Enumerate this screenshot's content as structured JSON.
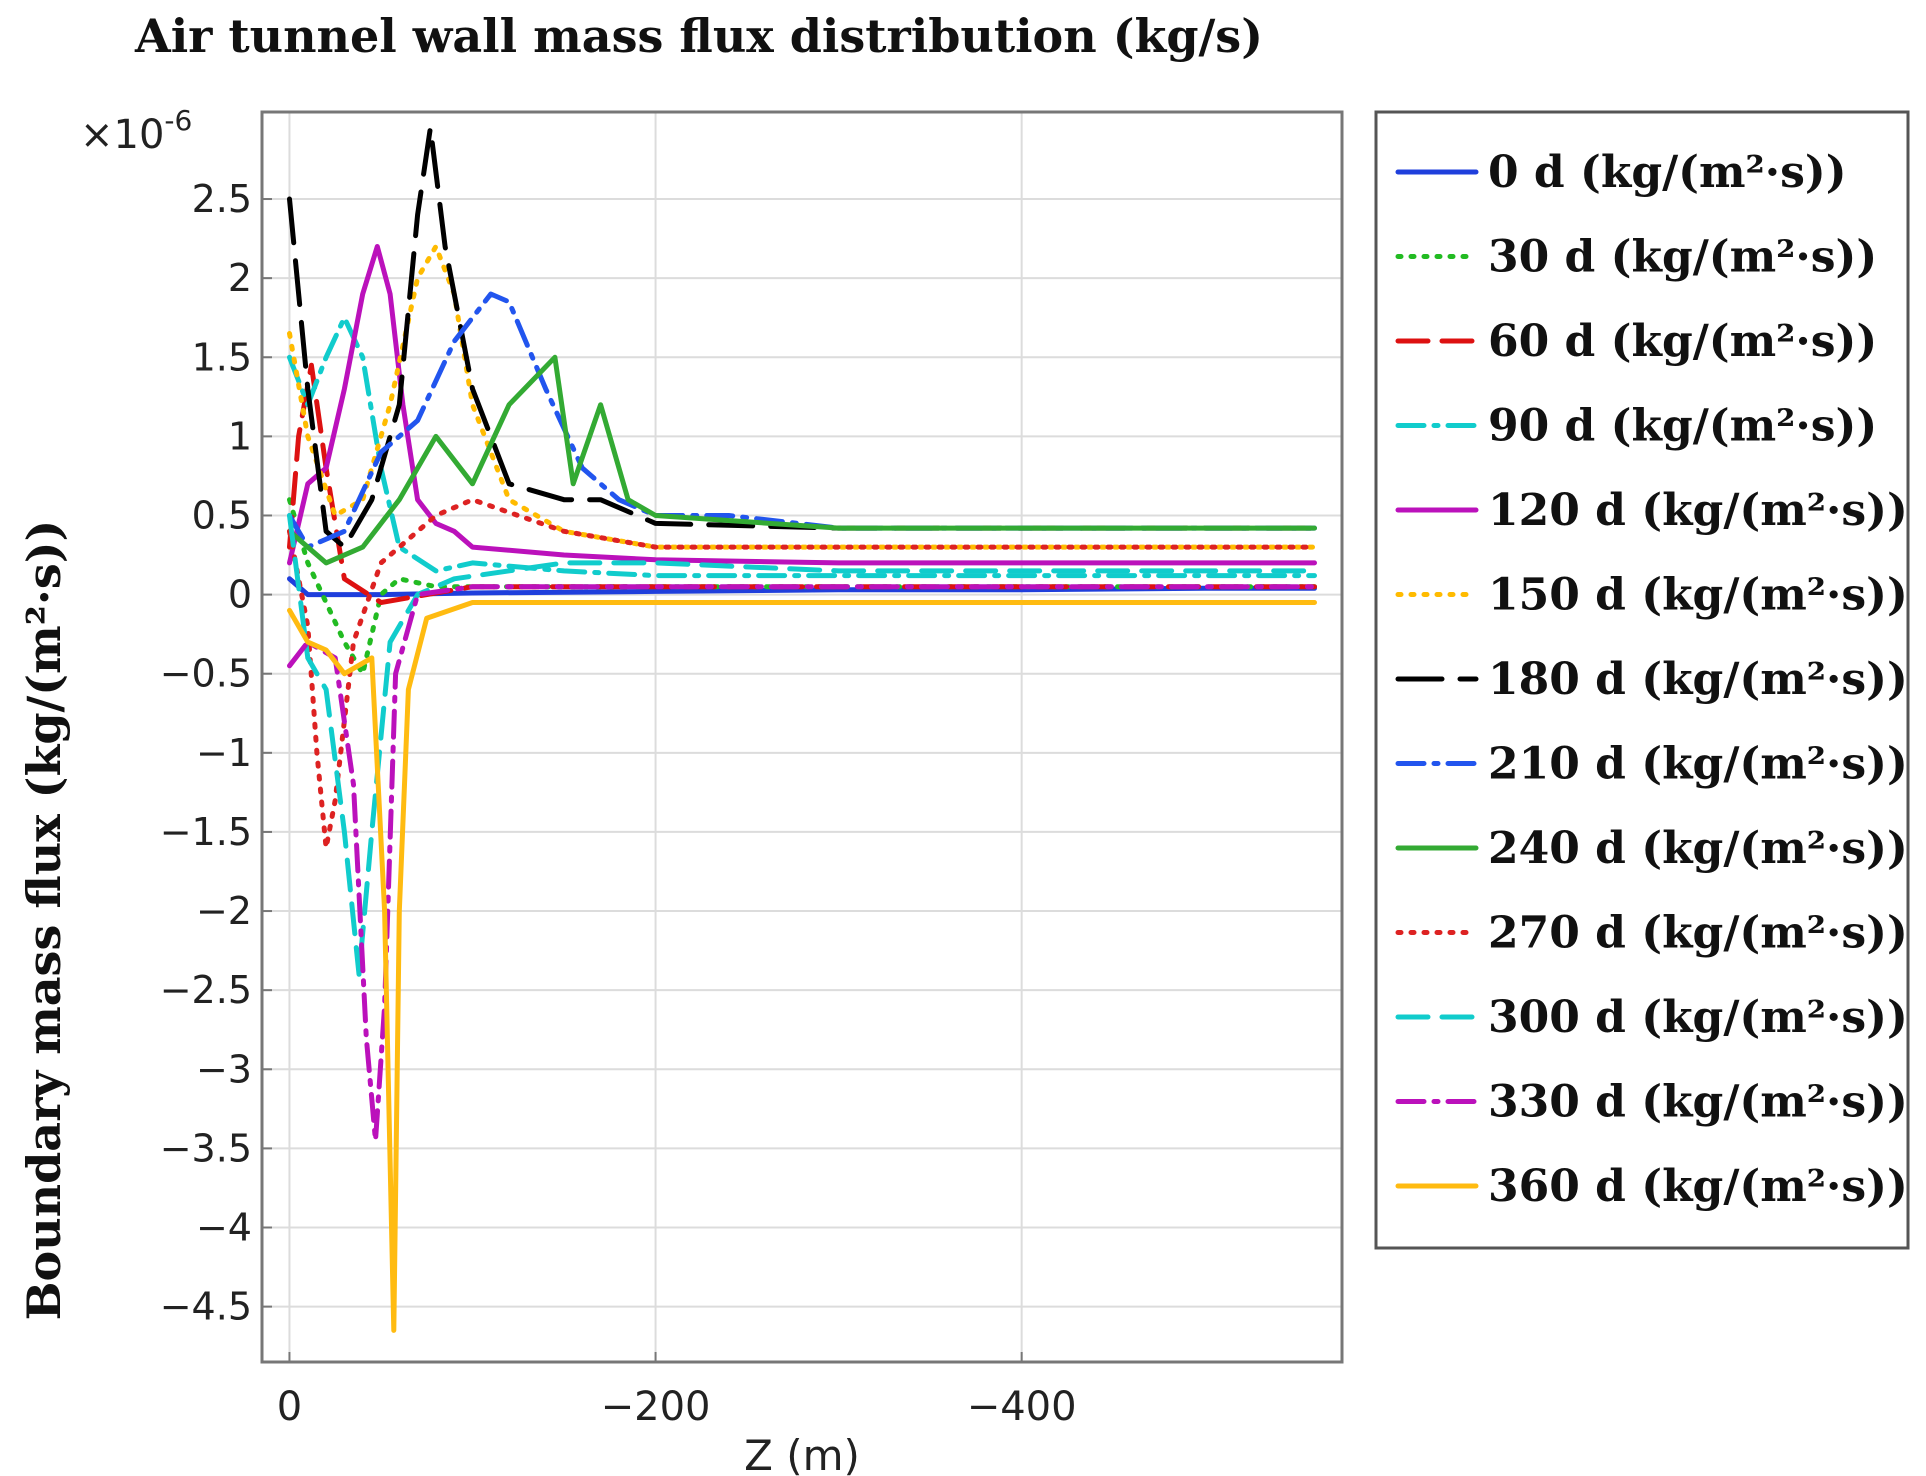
{
  "chart_data": {
    "type": "line",
    "title": "Air tunnel wall mass flux distribution (kg/s)",
    "xlabel": "Z (m)",
    "ylabel": "Boundary mass flux (kg/(m²·s))",
    "y_multiplier": "×10",
    "y_multiplier_exp": "-6",
    "xlim": [
      15,
      -575
    ],
    "ylim": [
      -4.85,
      3.05
    ],
    "xticks": [
      0,
      -200,
      -400
    ],
    "xtick_labels": [
      "0",
      "−200",
      "−400"
    ],
    "yticks": [
      2.5,
      2,
      1.5,
      1,
      0.5,
      0,
      -0.5,
      -1,
      -1.5,
      -2,
      -2.5,
      -3,
      -3.5,
      -4,
      -4.5
    ],
    "ytick_labels": [
      "2.5",
      "2",
      "1.5",
      "1",
      "0.5",
      "0",
      "−0.5",
      "−1",
      "−1.5",
      "−2",
      "−2.5",
      "−3",
      "−3.5",
      "−4",
      "−4.5"
    ],
    "grid": true,
    "legend_position": "right",
    "series": [
      {
        "name": "0 d (kg/(m²·s))",
        "color": "#1f3fdc",
        "dash": "solid",
        "x": [
          0,
          -10,
          -50,
          -100,
          -200,
          -300,
          -400,
          -500,
          -560
        ],
        "y": [
          0.1,
          0.0,
          0.0,
          0.01,
          0.02,
          0.03,
          0.03,
          0.04,
          0.04
        ]
      },
      {
        "name": "30 d (kg/(m²·s))",
        "color": "#22bb22",
        "dash": "dot",
        "x": [
          0,
          -10,
          -30,
          -40,
          -50,
          -60,
          -80,
          -100,
          -150,
          -200,
          -300,
          -400,
          -500,
          -560
        ],
        "y": [
          0.6,
          0.2,
          -0.3,
          -0.5,
          0.0,
          0.1,
          0.05,
          0.05,
          0.05,
          0.05,
          0.05,
          0.05,
          0.05,
          0.05
        ]
      },
      {
        "name": "60 d (kg/(m²·s))",
        "color": "#dd1111",
        "dash": "dash",
        "x": [
          0,
          -5,
          -12,
          -20,
          -30,
          -50,
          -100,
          -150,
          -200,
          -300,
          -400,
          -500,
          -560
        ],
        "y": [
          0.3,
          1.0,
          1.45,
          0.8,
          0.1,
          -0.05,
          0.05,
          0.05,
          0.05,
          0.05,
          0.05,
          0.05,
          0.05
        ]
      },
      {
        "name": "90 d (kg/(m²·s))",
        "color": "#11cccc",
        "dash": "dashdot",
        "x": [
          0,
          -10,
          -20,
          -30,
          -40,
          -50,
          -60,
          -80,
          -100,
          -150,
          -200,
          -300,
          -400,
          -500,
          -560
        ],
        "y": [
          1.5,
          1.2,
          1.5,
          1.75,
          1.5,
          0.8,
          0.3,
          0.15,
          0.2,
          0.15,
          0.12,
          0.12,
          0.12,
          0.12,
          0.12
        ]
      },
      {
        "name": "120 d (kg/(m²·s))",
        "color": "#bb11bb",
        "dash": "solid",
        "x": [
          0,
          -10,
          -20,
          -30,
          -40,
          -48,
          -55,
          -62,
          -70,
          -80,
          -90,
          -100,
          -150,
          -200,
          -300,
          -400,
          -500,
          -560
        ],
        "y": [
          0.2,
          0.7,
          0.8,
          1.3,
          1.9,
          2.2,
          1.9,
          1.2,
          0.6,
          0.45,
          0.4,
          0.3,
          0.25,
          0.22,
          0.2,
          0.2,
          0.2,
          0.2
        ]
      },
      {
        "name": "150 d (kg/(m²·s))",
        "color": "#ffbb00",
        "dash": "dot",
        "x": [
          0,
          -10,
          -25,
          -40,
          -55,
          -70,
          -80,
          -90,
          -100,
          -120,
          -150,
          -200,
          -300,
          -400,
          -500,
          -560
        ],
        "y": [
          1.65,
          1.0,
          0.5,
          0.6,
          1.2,
          2.0,
          2.2,
          1.9,
          1.2,
          0.6,
          0.4,
          0.3,
          0.3,
          0.3,
          0.3,
          0.3
        ]
      },
      {
        "name": "180 d (kg/(m²·s))",
        "color": "#000000",
        "dash": "longdash",
        "x": [
          0,
          -10,
          -20,
          -30,
          -45,
          -60,
          -70,
          -77,
          -85,
          -100,
          -120,
          -150,
          -170,
          -200,
          -300,
          -400,
          -500,
          -560
        ],
        "y": [
          2.5,
          1.3,
          0.4,
          0.3,
          0.6,
          1.2,
          2.4,
          2.95,
          2.2,
          1.3,
          0.7,
          0.6,
          0.6,
          0.45,
          0.42,
          0.42,
          0.42,
          0.42
        ]
      },
      {
        "name": "210 d (kg/(m²·s))",
        "color": "#2255ee",
        "dash": "dashdot",
        "x": [
          0,
          -10,
          -30,
          -50,
          -70,
          -90,
          -110,
          -120,
          -140,
          -160,
          -180,
          -200,
          -240,
          -300,
          -400,
          -500,
          -560
        ],
        "y": [
          0.5,
          0.3,
          0.4,
          0.9,
          1.1,
          1.6,
          1.9,
          1.85,
          1.3,
          0.8,
          0.6,
          0.5,
          0.5,
          0.42,
          0.42,
          0.42,
          0.42
        ]
      },
      {
        "name": "240 d (kg/(m²·s))",
        "color": "#33aa33",
        "dash": "solid",
        "x": [
          0,
          -20,
          -40,
          -60,
          -80,
          -100,
          -120,
          -145,
          -155,
          -170,
          -185,
          -200,
          -300,
          -400,
          -500,
          -560
        ],
        "y": [
          0.4,
          0.2,
          0.3,
          0.6,
          1.0,
          0.7,
          1.2,
          1.5,
          0.7,
          1.2,
          0.6,
          0.5,
          0.42,
          0.42,
          0.42,
          0.42
        ]
      },
      {
        "name": "270 d (kg/(m²·s))",
        "color": "#dd2222",
        "dash": "dot",
        "x": [
          0,
          -10,
          -15,
          -20,
          -25,
          -35,
          -50,
          -80,
          -100,
          -150,
          -200,
          -300,
          -400,
          -500,
          -560
        ],
        "y": [
          0.4,
          -0.2,
          -1.0,
          -1.6,
          -1.3,
          -0.3,
          0.2,
          0.5,
          0.6,
          0.4,
          0.3,
          0.3,
          0.3,
          0.3,
          0.3
        ]
      },
      {
        "name": "300 d (kg/(m²·s))",
        "color": "#11cccc",
        "dash": "dash",
        "x": [
          0,
          -10,
          -20,
          -30,
          -38,
          -45,
          -55,
          -70,
          -90,
          -150,
          -200,
          -300,
          -400,
          -500,
          -560
        ],
        "y": [
          0.5,
          -0.4,
          -0.6,
          -1.5,
          -2.4,
          -1.5,
          -0.3,
          0.0,
          0.1,
          0.2,
          0.2,
          0.15,
          0.15,
          0.15,
          0.15
        ]
      },
      {
        "name": "330 d (kg/(m²·s))",
        "color": "#bb11bb",
        "dash": "dashdot",
        "x": [
          0,
          -10,
          -25,
          -35,
          -42,
          -47,
          -52,
          -58,
          -70,
          -100,
          -200,
          -300,
          -400,
          -500,
          -560
        ],
        "y": [
          -0.45,
          -0.3,
          -0.4,
          -1.2,
          -2.8,
          -3.45,
          -2.6,
          -0.5,
          0.0,
          0.05,
          0.05,
          0.05,
          0.05,
          0.05,
          0.05
        ]
      },
      {
        "name": "360 d (kg/(m²·s))",
        "color": "#ffbb11",
        "dash": "solid",
        "x": [
          0,
          -10,
          -20,
          -30,
          -45,
          -52,
          -57,
          -60,
          -65,
          -75,
          -100,
          -150,
          -200,
          -300,
          -400,
          -500,
          -560
        ],
        "y": [
          -0.1,
          -0.3,
          -0.35,
          -0.5,
          -0.4,
          -2.0,
          -4.65,
          -2.0,
          -0.6,
          -0.15,
          -0.05,
          -0.05,
          -0.05,
          -0.05,
          -0.05,
          -0.05,
          -0.05
        ]
      }
    ]
  }
}
